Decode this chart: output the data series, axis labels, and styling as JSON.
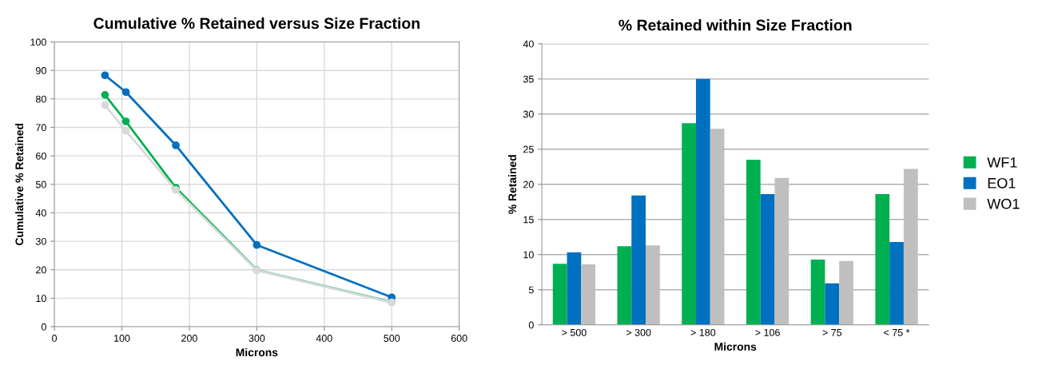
{
  "chart_data": [
    {
      "type": "line",
      "title": "Cumulative % Retained versus Size Fraction",
      "xlabel": "Microns",
      "ylabel": "Cumulative % Retained",
      "xlim": [
        0,
        600
      ],
      "xticks": [
        0,
        100,
        200,
        300,
        400,
        500,
        600
      ],
      "ylim": [
        0,
        100
      ],
      "yticks": [
        0,
        10,
        20,
        30,
        40,
        50,
        60,
        70,
        80,
        90,
        100
      ],
      "grid": true,
      "marker": "circle",
      "line_style": "solid",
      "legend": false,
      "series": [
        {
          "color": "#00b050",
          "x": [
            75,
            106,
            180,
            300,
            500
          ],
          "values": [
            81.4,
            72.1,
            48.8,
            19.9,
            8.6
          ]
        },
        {
          "color": "#0070c0",
          "x": [
            75,
            106,
            180,
            300,
            500
          ],
          "values": [
            88.3,
            82.4,
            63.7,
            28.7,
            10.3
          ]
        },
        {
          "color": "#d9d9d9",
          "x": [
            75,
            106,
            180,
            300,
            500
          ],
          "values": [
            77.8,
            68.8,
            48.0,
            19.8,
            8.5
          ]
        }
      ]
    },
    {
      "type": "bar",
      "title": "% Retained within Size Fraction",
      "xlabel": "Microns",
      "ylabel": "% Retained",
      "categories": [
        "> 500",
        "> 300",
        "> 180",
        "> 106",
        "> 75",
        "< 75 *"
      ],
      "ylim": [
        0,
        40
      ],
      "yticks": [
        0,
        5,
        10,
        15,
        20,
        25,
        30,
        35,
        40
      ],
      "grid": "y",
      "legend": "right",
      "series": [
        {
          "name": "WF1",
          "color": "#00b050",
          "values": [
            8.7,
            11.2,
            28.7,
            23.5,
            9.3,
            18.6
          ]
        },
        {
          "name": "EO1",
          "color": "#0070c0",
          "values": [
            10.3,
            18.4,
            35.0,
            18.6,
            5.9,
            11.8
          ]
        },
        {
          "name": "WO1",
          "color": "#bfbfbf",
          "values": [
            8.6,
            11.3,
            27.9,
            20.9,
            9.1,
            22.2
          ]
        }
      ]
    }
  ]
}
